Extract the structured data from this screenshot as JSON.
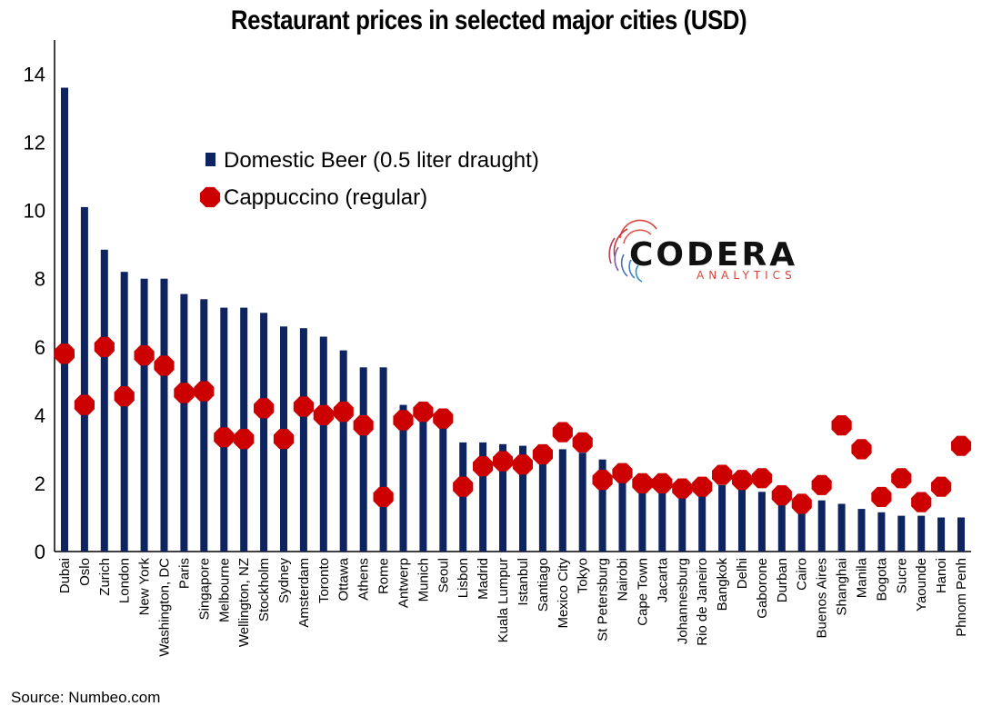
{
  "source": "Source: Numbeo.com",
  "logo": {
    "name": "CODERA",
    "tagline": "ANALYTICS"
  },
  "colors": {
    "beer": "#0d2461",
    "cappuccino": "#cc0000",
    "axis": "#000000"
  },
  "chart_data": {
    "type": "bar",
    "title": "Restaurant prices in selected major cities (USD)",
    "xlabel": "",
    "ylabel": "",
    "ylim": [
      0,
      15
    ],
    "yticks": [
      0,
      2,
      4,
      6,
      8,
      10,
      12,
      14
    ],
    "grid": false,
    "legend_position": "upper-left",
    "categories": [
      "Dubai",
      "Oslo",
      "Zurich",
      "London",
      "New York",
      "Washington, DC",
      "Paris",
      "Singapore",
      "Melbourne",
      "Wellington, NZ",
      "Stockholm",
      "Sydney",
      "Amsterdam",
      "Toronto",
      "Ottawa",
      "Athens",
      "Rome",
      "Antwerp",
      "Munich",
      "Seoul",
      "Lisbon",
      "Madrid",
      "Kuala Lumpur",
      "Istanbul",
      "Santiago",
      "Mexico City",
      "Tokyo",
      "St Petersburg",
      "Nairobi",
      "Cape Town",
      "Jacarta",
      "Johannesburg",
      "Rio de Janeiro",
      "Bangkok",
      "Delhi",
      "Gaborone",
      "Durban",
      "Cairo",
      "Buenos Aires",
      "Shanghai",
      "Manila",
      "Bogota",
      "Sucre",
      "Yaounde",
      "Hanoi",
      "Phnom Penh"
    ],
    "series": [
      {
        "name": "Domestic Beer (0.5 liter draught)",
        "marker": "bar",
        "values": [
          13.6,
          10.1,
          8.85,
          8.2,
          8.0,
          8.0,
          7.55,
          7.4,
          7.15,
          7.15,
          7.0,
          6.6,
          6.55,
          6.3,
          5.9,
          5.4,
          5.4,
          4.3,
          4.1,
          3.9,
          3.2,
          3.2,
          3.15,
          3.1,
          2.8,
          3.0,
          2.9,
          2.7,
          2.3,
          2.0,
          2.0,
          1.7,
          1.7,
          1.95,
          1.9,
          1.75,
          1.6,
          1.2,
          1.5,
          1.4,
          1.25,
          1.15,
          1.05,
          1.05,
          1.0,
          1.0
        ]
      },
      {
        "name": "Cappuccino (regular)",
        "marker": "octagon",
        "values": [
          5.8,
          4.3,
          6.0,
          4.55,
          5.75,
          5.45,
          4.65,
          4.7,
          3.35,
          3.3,
          4.2,
          3.3,
          4.25,
          4.0,
          4.1,
          3.7,
          1.6,
          3.85,
          4.1,
          3.9,
          1.9,
          2.5,
          2.65,
          2.55,
          2.85,
          3.5,
          3.2,
          2.1,
          2.3,
          2.0,
          2.0,
          1.85,
          1.9,
          2.25,
          2.1,
          2.15,
          1.65,
          1.4,
          1.95,
          3.7,
          3.0,
          1.6,
          2.15,
          1.45,
          1.9,
          3.1
        ]
      }
    ]
  }
}
